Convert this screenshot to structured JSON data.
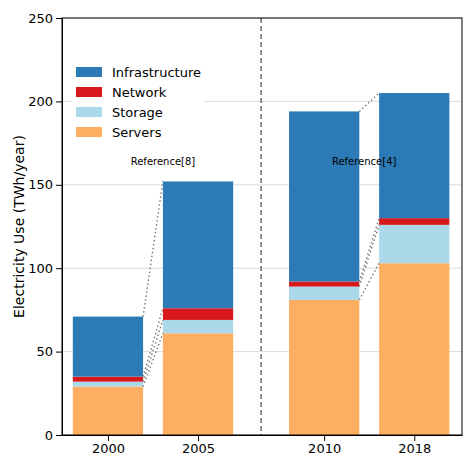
{
  "chart_data": {
    "type": "bar",
    "stacked": true,
    "categories": [
      "2000",
      "2005",
      "2010",
      "2018"
    ],
    "series": [
      {
        "name": "Servers",
        "color": "#fdae61",
        "values": [
          29,
          61,
          81,
          103
        ]
      },
      {
        "name": "Storage",
        "color": "#abd9e9",
        "values": [
          3,
          8,
          8,
          23
        ]
      },
      {
        "name": "Network",
        "color": "#d7191c",
        "values": [
          3,
          7,
          3,
          4
        ]
      },
      {
        "name": "Infrastructure",
        "color": "#2c7bb6",
        "values": [
          36,
          76,
          102,
          75
        ]
      }
    ],
    "y_label": "Electricity Use (TWh/year)",
    "annotations": [
      "Reference[8]",
      "Reference[4]"
    ],
    "ylim": [
      0,
      250
    ],
    "yticks": [
      0,
      50,
      100,
      150,
      200,
      250
    ],
    "grid": true,
    "legend": "upper left"
  }
}
